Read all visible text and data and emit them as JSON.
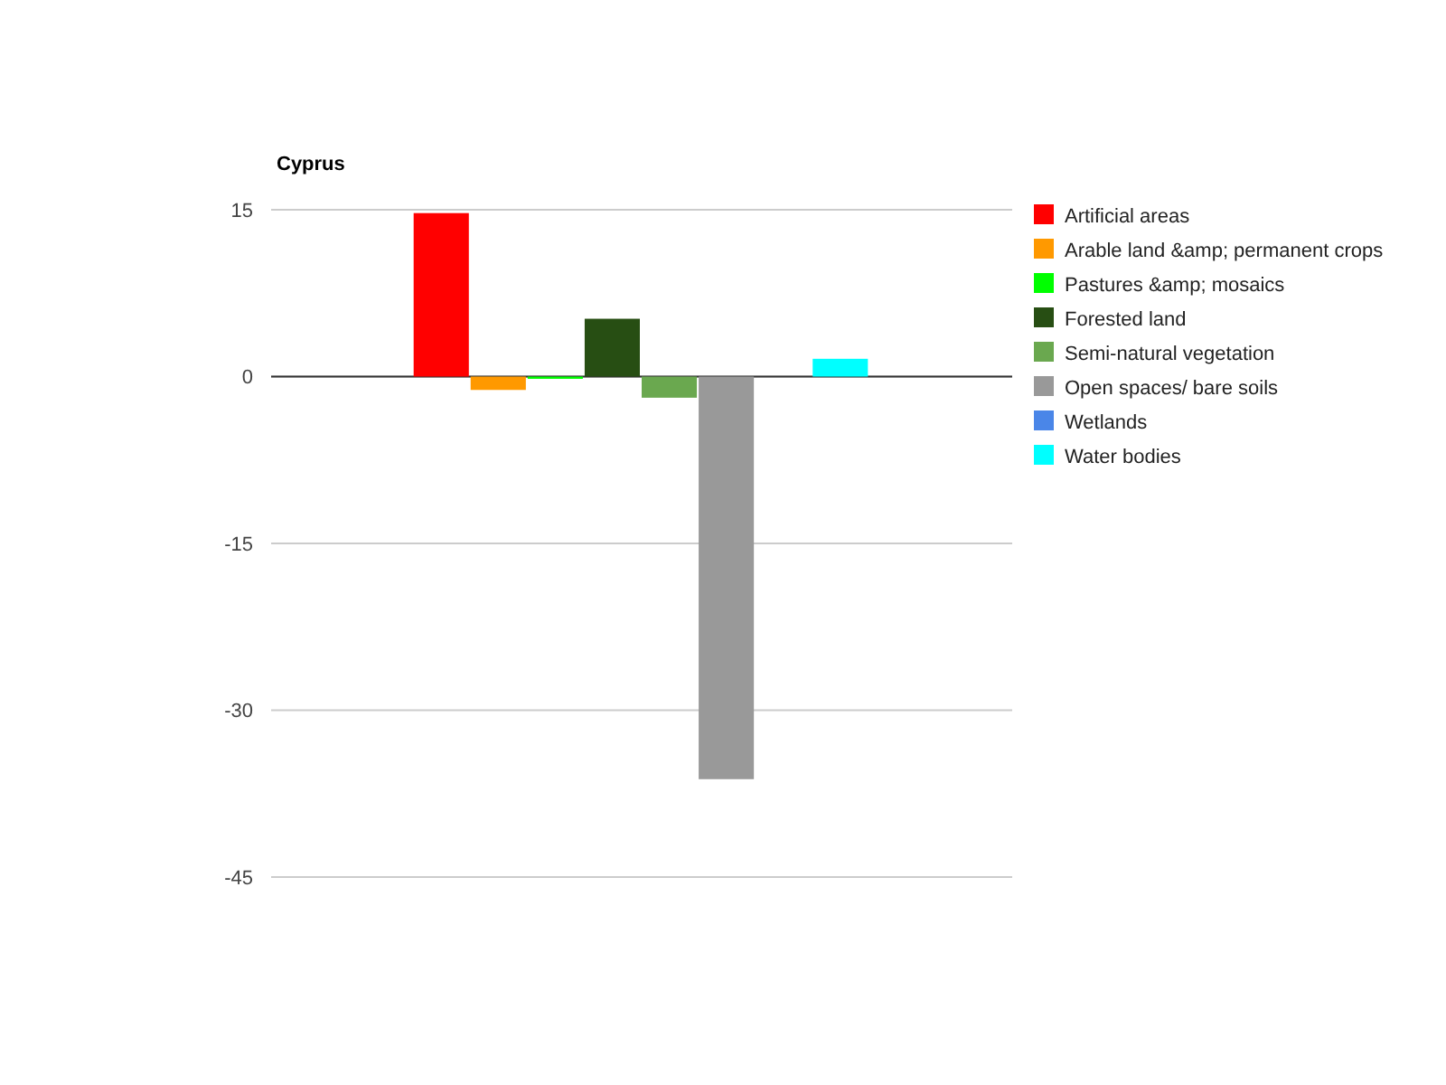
{
  "chart_data": {
    "type": "bar",
    "title": "Cyprus",
    "categories": [
      null
    ],
    "series": [
      {
        "name": "Artificial areas",
        "color": "#ff0000",
        "values": [
          14.7
        ]
      },
      {
        "name": "Arable land &amp; permanent crops",
        "color": "#ff9900",
        "values": [
          -1.2
        ]
      },
      {
        "name": "Pastures &amp; mosaics",
        "color": "#00ff00",
        "values": [
          -0.2
        ]
      },
      {
        "name": "Forested land",
        "color": "#274e13",
        "values": [
          5.2
        ]
      },
      {
        "name": "Semi-natural vegetation",
        "color": "#6aa84f",
        "values": [
          -1.9
        ]
      },
      {
        "name": "Open spaces/ bare soils",
        "color": "#999999",
        "values": [
          -36.2
        ]
      },
      {
        "name": "Wetlands",
        "color": "#4a86e8",
        "values": [
          0
        ]
      },
      {
        "name": "Water bodies",
        "color": "#00ffff",
        "values": [
          1.6
        ]
      }
    ],
    "ylim": [
      -45,
      15
    ],
    "yticks": [
      -45,
      -30,
      -15,
      0,
      15
    ],
    "grid": "y",
    "legend": "right"
  }
}
